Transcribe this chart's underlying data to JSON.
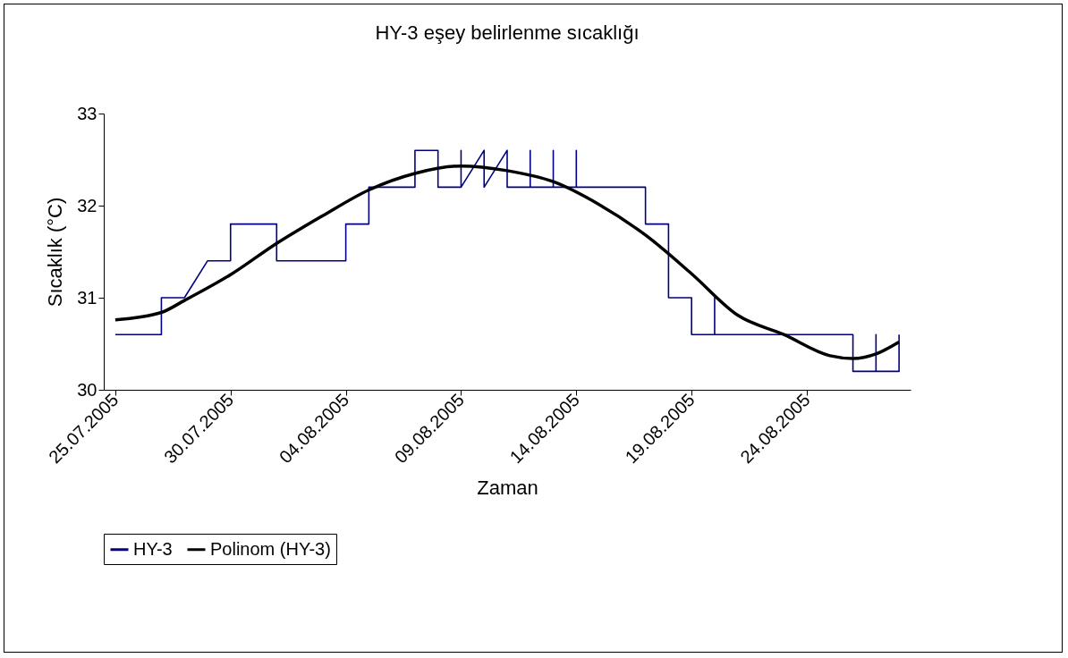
{
  "chart_data": {
    "type": "line",
    "title": "HY-3 eşey belirlenme sıcaklığı",
    "xlabel": "Zaman",
    "ylabel": "Sıcaklık (°C)",
    "xlim": [
      "2005-07-24T12:00",
      "2005-08-28T12:00"
    ],
    "xticks": [
      {
        "value": "2005-07-25",
        "label": "25.07.2005"
      },
      {
        "value": "2005-07-30",
        "label": "30.07.2005"
      },
      {
        "value": "2005-08-04",
        "label": "04.08.2005"
      },
      {
        "value": "2005-08-09",
        "label": "09.08.2005"
      },
      {
        "value": "2005-08-14",
        "label": "14.08.2005"
      },
      {
        "value": "2005-08-19",
        "label": "19.08.2005"
      },
      {
        "value": "2005-08-24",
        "label": "24.08.2005"
      }
    ],
    "ylim": [
      30,
      33
    ],
    "yticks": [
      30,
      31,
      32,
      33
    ],
    "grid": false,
    "legend": "bottom",
    "marker": "none",
    "line_style": "solid",
    "series": [
      {
        "name": "HY-3",
        "color": "#000080",
        "x": [
          "2005-07-25",
          "2005-07-26",
          "2005-07-27",
          "2005-07-27",
          "2005-07-28",
          "2005-07-29",
          "2005-07-30",
          "2005-07-30",
          "2005-07-31",
          "2005-08-01",
          "2005-08-01",
          "2005-08-02",
          "2005-08-03",
          "2005-08-04",
          "2005-08-04",
          "2005-08-05",
          "2005-08-05",
          "2005-08-06",
          "2005-08-07",
          "2005-08-07",
          "2005-08-08",
          "2005-08-08",
          "2005-08-09",
          "2005-08-09",
          "2005-08-09",
          "2005-08-10",
          "2005-08-10",
          "2005-08-11",
          "2005-08-11",
          "2005-08-12",
          "2005-08-12",
          "2005-08-12",
          "2005-08-13",
          "2005-08-13",
          "2005-08-13",
          "2005-08-14",
          "2005-08-14",
          "2005-08-14",
          "2005-08-15",
          "2005-08-16",
          "2005-08-17",
          "2005-08-17",
          "2005-08-18",
          "2005-08-18",
          "2005-08-19",
          "2005-08-19",
          "2005-08-20",
          "2005-08-20",
          "2005-08-20",
          "2005-08-21",
          "2005-08-22",
          "2005-08-23",
          "2005-08-24",
          "2005-08-25",
          "2005-08-26",
          "2005-08-26",
          "2005-08-27",
          "2005-08-27",
          "2005-08-27",
          "2005-08-28",
          "2005-08-28"
        ],
        "values": [
          30.6,
          30.6,
          30.6,
          31.0,
          31.0,
          31.4,
          31.4,
          31.8,
          31.8,
          31.8,
          31.4,
          31.4,
          31.4,
          31.4,
          31.8,
          31.8,
          32.2,
          32.2,
          32.2,
          32.6,
          32.6,
          32.2,
          32.2,
          32.6,
          32.2,
          32.6,
          32.2,
          32.6,
          32.2,
          32.2,
          32.6,
          32.2,
          32.2,
          32.6,
          32.2,
          32.2,
          32.6,
          32.2,
          32.2,
          32.2,
          32.2,
          31.8,
          31.8,
          31.0,
          31.0,
          30.6,
          30.6,
          31.0,
          30.6,
          30.6,
          30.6,
          30.6,
          30.6,
          30.6,
          30.6,
          30.2,
          30.2,
          30.6,
          30.2,
          30.2,
          30.6
        ]
      },
      {
        "name": "Polinom (HY-3)",
        "color": "#000000",
        "x": [
          "2005-07-25",
          "2005-07-27",
          "2005-07-28",
          "2005-07-30",
          "2005-08-01",
          "2005-08-03",
          "2005-08-05",
          "2005-08-07",
          "2005-08-09",
          "2005-08-11",
          "2005-08-13",
          "2005-08-15",
          "2005-08-17",
          "2005-08-19",
          "2005-08-21",
          "2005-08-23",
          "2005-08-25",
          "2005-08-26",
          "2005-08-27",
          "2005-08-28"
        ],
        "values": [
          30.76,
          30.84,
          30.97,
          31.25,
          31.59,
          31.89,
          32.17,
          32.35,
          32.43,
          32.38,
          32.26,
          32.01,
          31.68,
          31.26,
          30.81,
          30.6,
          30.37,
          30.34,
          30.39,
          30.52
        ]
      }
    ]
  }
}
